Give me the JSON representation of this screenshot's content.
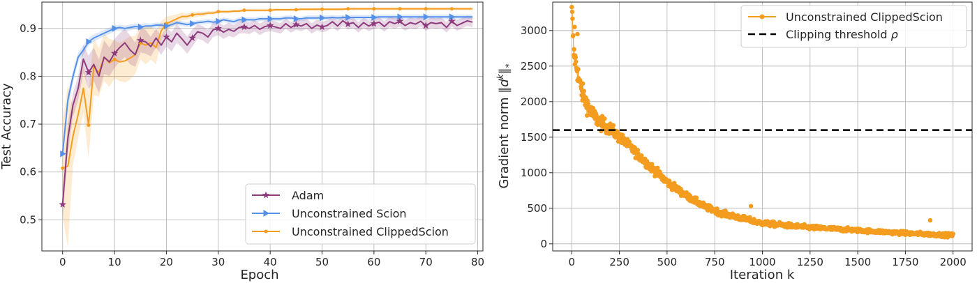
{
  "chart_data": [
    {
      "type": "line",
      "xlabel": "Epoch",
      "ylabel": "Test Accuracy",
      "xlim": [
        -4,
        81
      ],
      "ylim": [
        0.435,
        0.955
      ],
      "xticks": [
        0,
        10,
        20,
        30,
        40,
        50,
        60,
        70,
        80
      ],
      "yticks": [
        0.5,
        0.6,
        0.7,
        0.8,
        0.9
      ],
      "grid": true,
      "legend_position": "lower-right",
      "x": [
        0,
        1,
        2,
        3,
        4,
        5,
        6,
        7,
        8,
        9,
        10,
        11,
        12,
        13,
        14,
        15,
        16,
        17,
        18,
        19,
        20,
        21,
        22,
        23,
        24,
        25,
        26,
        27,
        28,
        29,
        30,
        31,
        32,
        33,
        34,
        35,
        36,
        37,
        38,
        39,
        40,
        41,
        42,
        43,
        44,
        45,
        46,
        47,
        48,
        49,
        50,
        51,
        52,
        53,
        54,
        55,
        56,
        57,
        58,
        59,
        60,
        61,
        62,
        63,
        64,
        65,
        66,
        67,
        68,
        69,
        70,
        71,
        72,
        73,
        74,
        75,
        76,
        77,
        78,
        79
      ],
      "series": [
        {
          "name": "Adam",
          "color": "#8e3b7d",
          "marker": "star",
          "marker_every": 5,
          "values": [
            0.532,
            0.67,
            0.74,
            0.775,
            0.836,
            0.808,
            0.825,
            0.8,
            0.84,
            0.83,
            0.848,
            0.86,
            0.87,
            0.855,
            0.845,
            0.875,
            0.872,
            0.862,
            0.88,
            0.865,
            0.882,
            0.872,
            0.89,
            0.878,
            0.865,
            0.88,
            0.893,
            0.89,
            0.882,
            0.897,
            0.9,
            0.892,
            0.898,
            0.894,
            0.902,
            0.903,
            0.9,
            0.906,
            0.898,
            0.904,
            0.906,
            0.903,
            0.9,
            0.91,
            0.902,
            0.908,
            0.905,
            0.91,
            0.9,
            0.907,
            0.903,
            0.906,
            0.914,
            0.905,
            0.916,
            0.909,
            0.912,
            0.902,
            0.912,
            0.905,
            0.91,
            0.913,
            0.904,
            0.914,
            0.91,
            0.915,
            0.906,
            0.912,
            0.909,
            0.915,
            0.906,
            0.912,
            0.91,
            0.912,
            0.902,
            0.915,
            0.906,
            0.911,
            0.916,
            0.913
          ],
          "band": [
            0.03,
            0.03,
            0.025,
            0.025,
            0.03,
            0.035,
            0.035,
            0.035,
            0.035,
            0.03,
            0.03,
            0.03,
            0.03,
            0.03,
            0.025,
            0.025,
            0.025,
            0.02,
            0.02,
            0.02,
            0.02,
            0.02,
            0.02,
            0.018,
            0.018,
            0.018,
            0.015,
            0.015,
            0.015,
            0.015,
            0.014,
            0.014,
            0.014,
            0.013,
            0.013,
            0.013,
            0.012,
            0.012,
            0.012,
            0.012,
            0.012,
            0.011,
            0.011,
            0.011,
            0.011,
            0.011,
            0.011,
            0.011,
            0.011,
            0.011,
            0.011,
            0.011,
            0.011,
            0.011,
            0.011,
            0.011,
            0.011,
            0.011,
            0.011,
            0.011,
            0.011,
            0.011,
            0.011,
            0.011,
            0.011,
            0.011,
            0.011,
            0.011,
            0.011,
            0.011,
            0.011,
            0.011,
            0.011,
            0.011,
            0.011,
            0.011,
            0.011,
            0.011,
            0.011,
            0.011
          ]
        },
        {
          "name": "Unconstrained Scion",
          "color": "#5590e8",
          "marker": "triangle-right",
          "marker_every": 5,
          "values": [
            0.638,
            0.75,
            0.8,
            0.84,
            0.855,
            0.872,
            0.88,
            0.885,
            0.89,
            0.895,
            0.9,
            0.902,
            0.9,
            0.902,
            0.904,
            0.903,
            0.905,
            0.905,
            0.907,
            0.907,
            0.905,
            0.908,
            0.912,
            0.91,
            0.908,
            0.91,
            0.912,
            0.913,
            0.915,
            0.913,
            0.915,
            0.918,
            0.916,
            0.914,
            0.918,
            0.918,
            0.918,
            0.918,
            0.92,
            0.92,
            0.92,
            0.92,
            0.92,
            0.922,
            0.922,
            0.92,
            0.92,
            0.922,
            0.922,
            0.922,
            0.922,
            0.922,
            0.923,
            0.922,
            0.923,
            0.923,
            0.923,
            0.923,
            0.923,
            0.923,
            0.923,
            0.924,
            0.924,
            0.924,
            0.924,
            0.924,
            0.924,
            0.924,
            0.924,
            0.924,
            0.924,
            0.924,
            0.924,
            0.924,
            0.924,
            0.924,
            0.924,
            0.924,
            0.924,
            0.924
          ],
          "band": [
            0.01,
            0.015,
            0.012,
            0.01,
            0.01,
            0.008,
            0.008,
            0.007,
            0.007,
            0.007,
            0.006,
            0.006,
            0.006,
            0.006,
            0.006,
            0.006,
            0.006,
            0.005,
            0.005,
            0.005,
            0.005,
            0.005,
            0.005,
            0.005,
            0.005,
            0.005,
            0.005,
            0.005,
            0.005,
            0.005,
            0.005,
            0.005,
            0.005,
            0.005,
            0.005,
            0.005,
            0.005,
            0.005,
            0.005,
            0.005,
            0.005,
            0.005,
            0.005,
            0.005,
            0.005,
            0.005,
            0.005,
            0.005,
            0.005,
            0.005,
            0.005,
            0.005,
            0.005,
            0.005,
            0.005,
            0.005,
            0.005,
            0.005,
            0.005,
            0.005,
            0.005,
            0.005,
            0.005,
            0.005,
            0.005,
            0.005,
            0.005,
            0.005,
            0.005,
            0.005,
            0.005,
            0.005,
            0.005,
            0.005,
            0.005,
            0.005,
            0.005,
            0.005,
            0.005,
            0.005
          ]
        },
        {
          "name": "Unconstrained ClippedScion",
          "color": "#f39c1f",
          "marker": "dot",
          "marker_every": 5,
          "values": [
            0.608,
            0.612,
            0.675,
            0.72,
            0.775,
            0.698,
            0.82,
            0.808,
            0.84,
            0.828,
            0.835,
            0.83,
            0.832,
            0.838,
            0.845,
            0.87,
            0.865,
            0.87,
            0.86,
            0.895,
            0.91,
            0.915,
            0.92,
            0.925,
            0.925,
            0.928,
            0.93,
            0.93,
            0.932,
            0.932,
            0.935,
            0.935,
            0.935,
            0.936,
            0.936,
            0.938,
            0.938,
            0.938,
            0.938,
            0.938,
            0.938,
            0.939,
            0.939,
            0.939,
            0.939,
            0.939,
            0.94,
            0.94,
            0.94,
            0.94,
            0.94,
            0.94,
            0.94,
            0.94,
            0.94,
            0.941,
            0.941,
            0.941,
            0.941,
            0.941,
            0.941,
            0.941,
            0.941,
            0.941,
            0.941,
            0.941,
            0.941,
            0.941,
            0.941,
            0.941,
            0.941,
            0.941,
            0.941,
            0.941,
            0.941,
            0.941,
            0.941,
            0.941,
            0.941,
            0.941
          ],
          "band": [
            0.1,
            0.17,
            0.06,
            0.05,
            0.05,
            0.07,
            0.06,
            0.05,
            0.05,
            0.05,
            0.04,
            0.04,
            0.045,
            0.045,
            0.04,
            0.035,
            0.04,
            0.035,
            0.035,
            0.02,
            0.015,
            0.012,
            0.01,
            0.008,
            0.006,
            0.006,
            0.005,
            0.005,
            0.004,
            0.004,
            0.003,
            0.003,
            0.003,
            0.003,
            0.003,
            0.003,
            0.003,
            0.003,
            0.003,
            0.003,
            0.003,
            0.003,
            0.003,
            0.003,
            0.003,
            0.003,
            0.003,
            0.003,
            0.003,
            0.003,
            0.003,
            0.003,
            0.003,
            0.003,
            0.003,
            0.003,
            0.003,
            0.003,
            0.003,
            0.003,
            0.003,
            0.003,
            0.003,
            0.003,
            0.003,
            0.003,
            0.003,
            0.003,
            0.003,
            0.003,
            0.003,
            0.003,
            0.003,
            0.003,
            0.003,
            0.003,
            0.003,
            0.003,
            0.003,
            0.003
          ]
        }
      ]
    },
    {
      "type": "line",
      "xlabel": "Iteration k",
      "ylabel": "Gradient norm ‖dᵏ‖*",
      "xlim": [
        -100,
        2100
      ],
      "ylim": [
        -100,
        3400
      ],
      "xticks": [
        0,
        250,
        500,
        750,
        1000,
        1250,
        1500,
        1750,
        2000
      ],
      "yticks": [
        0,
        500,
        1000,
        1500,
        2000,
        2500,
        3000
      ],
      "grid": true,
      "legend_position": "top-right",
      "series": [
        {
          "name": "Unconstrained ClippedScion",
          "color": "#f39c1f",
          "marker": "dot",
          "model": "exponential decay with noise",
          "trend_x": [
            0,
            10,
            50,
            100,
            150,
            200,
            250,
            300,
            400,
            500,
            600,
            700,
            800,
            1000,
            1250,
            1500,
            1750,
            2000
          ],
          "trend_y": [
            3330,
            2700,
            2150,
            1850,
            1700,
            1620,
            1500,
            1380,
            1120,
            870,
            680,
            520,
            420,
            290,
            230,
            190,
            150,
            120
          ],
          "noise": [
            200,
            200,
            160,
            140,
            120,
            100,
            90,
            80,
            75,
            65,
            55,
            50,
            45,
            40,
            35,
            30,
            30,
            30
          ]
        },
        {
          "name": "Clipping threshold ρ",
          "color": "#000000",
          "style": "dashed",
          "value": 1600
        }
      ]
    }
  ]
}
